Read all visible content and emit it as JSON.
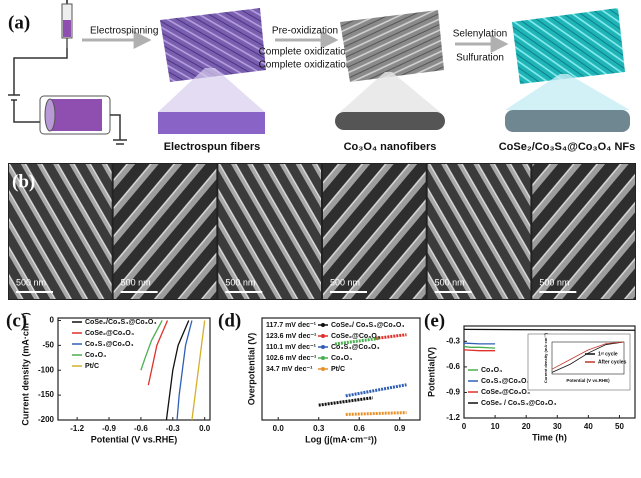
{
  "panel_a": {
    "label": "(a)",
    "steps": [
      "Electrospinning",
      "Pre-oxidization",
      "Complete oxidization",
      "Selenylation",
      "Sulfuration"
    ],
    "products": [
      "Electrospun fibers",
      "Co₃O₄ nanofibers",
      "CoSe₂/Co₃S₄@Co₃O₄ NFs"
    ]
  },
  "panel_b": {
    "label": "(b)",
    "scale_bars": [
      "500 nm",
      "500 nm",
      "500 nm",
      "500 nm",
      "500 nm",
      "500 nm"
    ]
  },
  "chart_data": [
    {
      "type": "line",
      "panel": "(c)",
      "xlabel": "Potential (V vs.RHE)",
      "ylabel": "Current density (mA·cm⁻²)",
      "xlim": [
        -1.38,
        0.05
      ],
      "ylim": [
        -200,
        5
      ],
      "xticks": [
        -1.2,
        -0.9,
        -0.6,
        -0.3,
        {
          "value": 0,
          "label": "0.0"
        }
      ],
      "yticks": [
        0,
        -50,
        -100,
        -150,
        -200
      ],
      "series": [
        {
          "name": "CoSe₂/Co₃S₄@Co₃O₄",
          "color": "#111111",
          "x": [
            -0.15,
            -0.25,
            -0.3,
            -0.33,
            -0.36
          ],
          "values": [
            0,
            -50,
            -100,
            -150,
            -200
          ]
        },
        {
          "name": "CoSe₂@Co₃O₄",
          "color": "#e0302a",
          "x": [
            -0.35,
            -0.45,
            -0.5,
            -0.53
          ],
          "values": [
            0,
            -50,
            -100,
            -130
          ]
        },
        {
          "name": "Co₃S₄@Co₃O₄",
          "color": "#2f5fb5",
          "x": [
            -0.12,
            -0.18,
            -0.21,
            -0.24,
            -0.26
          ],
          "values": [
            0,
            -50,
            -100,
            -150,
            -200
          ]
        },
        {
          "name": "Co₃O₄",
          "color": "#4caf50",
          "x": [
            -0.4,
            -0.5,
            -0.56,
            -0.6
          ],
          "values": [
            0,
            -40,
            -75,
            -100
          ]
        },
        {
          "name": "Pt/C",
          "color": "#d4b02a",
          "x": [
            0,
            -0.03,
            -0.06,
            -0.09,
            -0.12
          ],
          "values": [
            0,
            -50,
            -100,
            -150,
            -200
          ]
        }
      ]
    },
    {
      "type": "line",
      "panel": "(d)",
      "xlabel": "Log (j(mA·cm⁻²))",
      "ylabel": "Overpotential (V)",
      "xlim": [
        -0.12,
        1.05
      ],
      "ylim": [
        0,
        0.55
      ],
      "xticks": [
        {
          "value": 0,
          "label": "0.0"
        },
        0.3,
        0.6,
        0.9
      ],
      "series": [
        {
          "name": "CoSe₂/ Co₃S₄@Co₃O₄",
          "slope": "117.7 mV dec⁻¹",
          "color": "#111111",
          "x": [
            0.3,
            0.7
          ],
          "values": [
            0.08,
            0.12
          ]
        },
        {
          "name": "CoSe₂@Co₃O₄",
          "slope": "123.6 mV dec⁻¹",
          "color": "#e0302a",
          "x": [
            0.72,
            0.95
          ],
          "values": [
            0.44,
            0.46
          ]
        },
        {
          "name": "Co₃S₄@Co₃O₄",
          "slope": "110.1 mV dec⁻¹",
          "color": "#2f5fb5",
          "x": [
            0.5,
            0.95
          ],
          "values": [
            0.13,
            0.19
          ]
        },
        {
          "name": "Co₃O₄",
          "slope": "102.6 mV dec⁻¹",
          "color": "#4caf50",
          "x": [
            0.42,
            0.75
          ],
          "values": [
            0.41,
            0.44
          ]
        },
        {
          "name": "Pt/C",
          "slope": "34.7 mV dec⁻¹",
          "color": "#e8902a",
          "x": [
            0.5,
            0.95
          ],
          "values": [
            0.03,
            0.04
          ]
        }
      ]
    },
    {
      "type": "line",
      "panel": "(e)",
      "xlabel": "Time (h)",
      "ylabel": "Potential(V)",
      "xlim": [
        0,
        55
      ],
      "ylim": [
        -1.2,
        -0.12
      ],
      "xticks": [
        0,
        10,
        20,
        30,
        40,
        50
      ],
      "yticks": [
        -0.3,
        -0.6,
        -0.9,
        -1.2
      ],
      "series": [
        {
          "name": "Co₃O₄",
          "color": "#4caf50",
          "x": [
            0,
            2,
            5,
            10
          ],
          "values": [
            -0.36,
            -0.37,
            -0.37,
            -0.38
          ]
        },
        {
          "name": "Co₃S₄@Co₃O₄",
          "color": "#2f5fb5",
          "x": [
            0,
            5,
            10
          ],
          "values": [
            -0.32,
            -0.33,
            -0.33
          ]
        },
        {
          "name": "CoSe₂@Co₃O₄",
          "color": "#e0302a",
          "x": [
            0,
            5,
            10
          ],
          "values": [
            -0.4,
            -0.41,
            -0.41
          ]
        },
        {
          "name": "CoSe₂ / Co₃S₄@Co₃O₄",
          "color": "#111111",
          "x": [
            0,
            55
          ],
          "values": [
            -0.16,
            -0.17
          ]
        }
      ]
    },
    {
      "type": "line",
      "xlabel": "Potential (V vs.RHE)",
      "ylabel": "Current density (mA·cm⁻²)",
      "xlim": [
        -0.4,
        0
      ],
      "ylim": [
        -100,
        0
      ],
      "series": [
        {
          "name": "1ˢᵗ cycle",
          "color": "#111111",
          "x": [
            -0.4,
            -0.3,
            -0.2,
            -0.1,
            0
          ],
          "values": [
            -95,
            -70,
            -35,
            -8,
            0
          ]
        },
        {
          "name": "After cycles",
          "color": "#c0392b",
          "x": [
            -0.4,
            -0.3,
            -0.2,
            -0.1,
            0
          ],
          "values": [
            -85,
            -55,
            -25,
            -5,
            0
          ]
        }
      ]
    }
  ]
}
